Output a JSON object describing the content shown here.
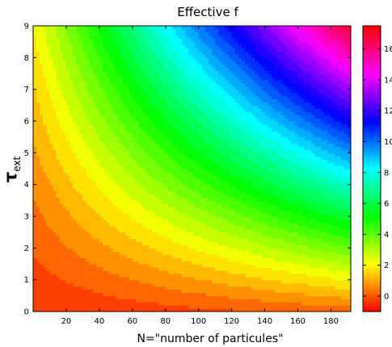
{
  "chart_data": {
    "type": "heatmap",
    "subtype": "filled-contour",
    "title": "Effective f",
    "xlabel": "N=\"number of particules\"",
    "ylabel_main": "τ",
    "ylabel_sub": "ext",
    "xlim": [
      0,
      192
    ],
    "ylim": [
      0,
      9
    ],
    "x_ticks": [
      20,
      40,
      60,
      80,
      100,
      120,
      140,
      160,
      180
    ],
    "y_ticks": [
      0,
      1,
      2,
      3,
      4,
      5,
      6,
      7,
      8,
      9
    ],
    "colorbar": {
      "range": [
        -1,
        17.5
      ],
      "ticks": [
        0,
        2,
        4,
        6,
        8,
        10,
        12,
        14,
        16
      ],
      "colormap": "hsv (red → yellow → green → cyan → blue → magenta → red)"
    },
    "field": {
      "description": "Effective f increases with both N and tau_ext; contour levels curve like hyperbolas (f grows roughly with N·tau_ext).",
      "corner_values": {
        "N0_tau0": -0.5,
        "N192_tau0": 0.2,
        "N0_tau9": 2.0,
        "N192_tau9": 17.0
      },
      "level_count": 37
    }
  }
}
